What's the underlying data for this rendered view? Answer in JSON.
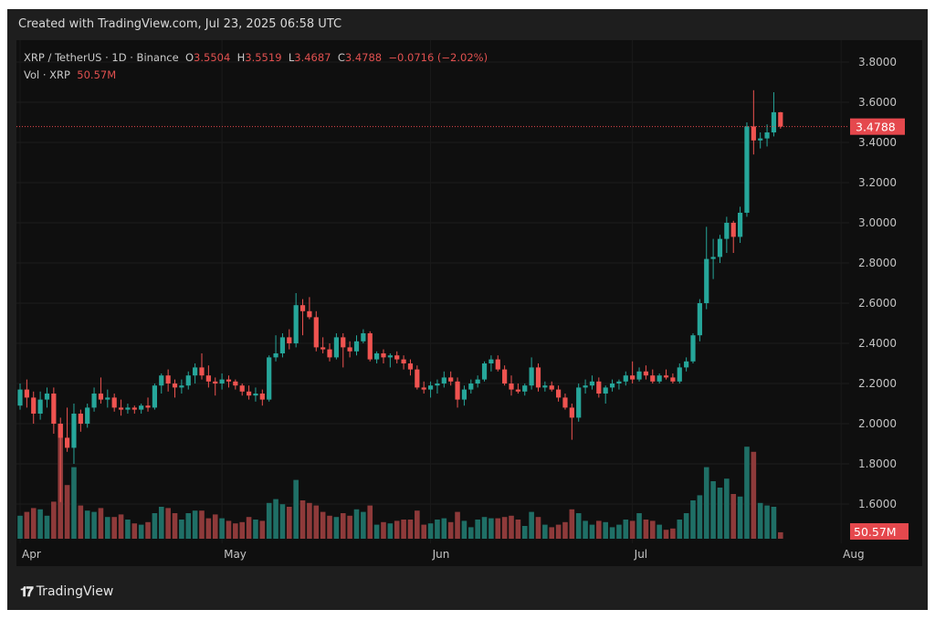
{
  "header": {
    "created": "Created with TradingView.com, Jul 23, 2025 06:58 UTC"
  },
  "legend": {
    "symbol": "XRP / TetherUS · 1D · Binance",
    "o_label": "O",
    "o": "3.5504",
    "h_label": "H",
    "h": "3.5519",
    "l_label": "L",
    "l": "3.4687",
    "c_label": "C",
    "c": "3.4788",
    "change": "−0.0716 (−2.02%)",
    "vol_label": "Vol · XRP",
    "vol": "50.57M"
  },
  "footer": {
    "brand": "TradingView",
    "logo_text": "TV"
  },
  "chart_data": {
    "type": "candlestick",
    "title": "XRP / TetherUS · 1D · Binance",
    "ylim": [
      1.5,
      3.9
    ],
    "y_ticks": [
      "3.8000",
      "3.6000",
      "3.4000",
      "3.2000",
      "3.0000",
      "2.8000",
      "2.6000",
      "2.4000",
      "2.2000",
      "2.0000",
      "1.8000",
      "1.6000"
    ],
    "x_ticks": [
      {
        "label": "Apr",
        "date": "04-01"
      },
      {
        "label": "May",
        "date": "05-01"
      },
      {
        "label": "Jun",
        "date": "06-01"
      },
      {
        "label": "Jul",
        "date": "07-01"
      },
      {
        "label": "Aug",
        "date": "08-01"
      }
    ],
    "last_price": "3.4788",
    "last_volume": "50.57M",
    "grid": true,
    "colors": {
      "up": "#26a69a",
      "down": "#ef5350",
      "vol_up": "#1f6f66",
      "vol_down": "#8e3a3a",
      "price_label": "#e5484d"
    },
    "columns": [
      "date",
      "open",
      "high",
      "low",
      "close",
      "volume_M"
    ],
    "candles": [
      [
        "04-01",
        2.09,
        2.2,
        2.07,
        2.17,
        180
      ],
      [
        "04-02",
        2.17,
        2.22,
        2.08,
        2.13,
        210
      ],
      [
        "04-03",
        2.13,
        2.16,
        2.0,
        2.05,
        240
      ],
      [
        "04-04",
        2.05,
        2.16,
        2.02,
        2.12,
        230
      ],
      [
        "04-05",
        2.12,
        2.18,
        2.08,
        2.15,
        180
      ],
      [
        "04-06",
        2.15,
        2.18,
        1.95,
        2.0,
        290
      ],
      [
        "04-07",
        2.0,
        2.03,
        1.61,
        1.93,
        900
      ],
      [
        "04-08",
        1.93,
        2.08,
        1.86,
        1.88,
        420
      ],
      [
        "04-09",
        1.88,
        2.1,
        1.8,
        2.05,
        560
      ],
      [
        "04-10",
        2.05,
        2.07,
        1.96,
        2.0,
        260
      ],
      [
        "04-11",
        2.0,
        2.1,
        1.98,
        2.08,
        220
      ],
      [
        "04-12",
        2.08,
        2.18,
        2.06,
        2.15,
        210
      ],
      [
        "04-13",
        2.15,
        2.23,
        2.1,
        2.12,
        240
      ],
      [
        "04-14",
        2.12,
        2.17,
        2.08,
        2.13,
        170
      ],
      [
        "04-15",
        2.13,
        2.15,
        2.06,
        2.08,
        170
      ],
      [
        "04-16",
        2.08,
        2.12,
        2.04,
        2.07,
        190
      ],
      [
        "04-17",
        2.07,
        2.1,
        2.05,
        2.08,
        150
      ],
      [
        "04-18",
        2.08,
        2.09,
        2.05,
        2.07,
        120
      ],
      [
        "04-19",
        2.07,
        2.1,
        2.05,
        2.09,
        110
      ],
      [
        "04-20",
        2.09,
        2.13,
        2.06,
        2.08,
        130
      ],
      [
        "04-21",
        2.08,
        2.2,
        2.07,
        2.19,
        200
      ],
      [
        "04-22",
        2.19,
        2.25,
        2.15,
        2.24,
        250
      ],
      [
        "04-23",
        2.24,
        2.27,
        2.16,
        2.2,
        240
      ],
      [
        "04-24",
        2.2,
        2.22,
        2.13,
        2.18,
        200
      ],
      [
        "04-25",
        2.18,
        2.22,
        2.15,
        2.19,
        150
      ],
      [
        "04-26",
        2.19,
        2.26,
        2.17,
        2.24,
        200
      ],
      [
        "04-27",
        2.24,
        2.3,
        2.2,
        2.28,
        220
      ],
      [
        "04-28",
        2.28,
        2.35,
        2.22,
        2.24,
        220
      ],
      [
        "04-29",
        2.24,
        2.29,
        2.18,
        2.21,
        160
      ],
      [
        "04-30",
        2.21,
        2.23,
        2.14,
        2.2,
        190
      ],
      [
        "05-01",
        2.2,
        2.25,
        2.17,
        2.22,
        160
      ],
      [
        "05-02",
        2.22,
        2.24,
        2.18,
        2.21,
        140
      ],
      [
        "05-03",
        2.21,
        2.22,
        2.17,
        2.19,
        120
      ],
      [
        "05-04",
        2.19,
        2.2,
        2.14,
        2.16,
        130
      ],
      [
        "05-05",
        2.16,
        2.19,
        2.12,
        2.14,
        170
      ],
      [
        "05-06",
        2.14,
        2.18,
        2.11,
        2.15,
        150
      ],
      [
        "05-07",
        2.15,
        2.17,
        2.09,
        2.12,
        140
      ],
      [
        "05-08",
        2.12,
        2.34,
        2.11,
        2.33,
        280
      ],
      [
        "05-09",
        2.33,
        2.44,
        2.31,
        2.35,
        310
      ],
      [
        "05-10",
        2.35,
        2.45,
        2.33,
        2.43,
        270
      ],
      [
        "05-11",
        2.43,
        2.47,
        2.37,
        2.4,
        250
      ],
      [
        "05-12",
        2.4,
        2.65,
        2.38,
        2.59,
        460
      ],
      [
        "05-13",
        2.59,
        2.62,
        2.44,
        2.56,
        300
      ],
      [
        "05-14",
        2.56,
        2.63,
        2.52,
        2.53,
        280
      ],
      [
        "05-15",
        2.53,
        2.56,
        2.36,
        2.38,
        260
      ],
      [
        "05-16",
        2.38,
        2.43,
        2.35,
        2.37,
        210
      ],
      [
        "05-17",
        2.37,
        2.4,
        2.31,
        2.33,
        180
      ],
      [
        "05-18",
        2.33,
        2.45,
        2.32,
        2.43,
        170
      ],
      [
        "05-19",
        2.43,
        2.45,
        2.28,
        2.38,
        200
      ],
      [
        "05-20",
        2.38,
        2.41,
        2.33,
        2.36,
        180
      ],
      [
        "05-21",
        2.36,
        2.44,
        2.34,
        2.41,
        230
      ],
      [
        "05-22",
        2.41,
        2.47,
        2.4,
        2.45,
        210
      ],
      [
        "05-23",
        2.45,
        2.46,
        2.31,
        2.32,
        260
      ],
      [
        "05-24",
        2.32,
        2.36,
        2.3,
        2.35,
        110
      ],
      [
        "05-25",
        2.35,
        2.37,
        2.3,
        2.33,
        130
      ],
      [
        "05-26",
        2.33,
        2.35,
        2.28,
        2.34,
        120
      ],
      [
        "05-27",
        2.34,
        2.36,
        2.3,
        2.32,
        140
      ],
      [
        "05-28",
        2.32,
        2.34,
        2.27,
        2.3,
        150
      ],
      [
        "05-29",
        2.3,
        2.32,
        2.24,
        2.27,
        150
      ],
      [
        "05-30",
        2.27,
        2.29,
        2.17,
        2.18,
        220
      ],
      [
        "05-31",
        2.18,
        2.21,
        2.15,
        2.17,
        110
      ],
      [
        "06-01",
        2.17,
        2.21,
        2.13,
        2.19,
        120
      ],
      [
        "06-02",
        2.19,
        2.22,
        2.15,
        2.2,
        150
      ],
      [
        "06-03",
        2.2,
        2.26,
        2.18,
        2.23,
        160
      ],
      [
        "06-04",
        2.23,
        2.26,
        2.19,
        2.21,
        130
      ],
      [
        "06-05",
        2.21,
        2.23,
        2.08,
        2.12,
        210
      ],
      [
        "06-06",
        2.12,
        2.19,
        2.09,
        2.17,
        140
      ],
      [
        "06-07",
        2.17,
        2.22,
        2.15,
        2.2,
        90
      ],
      [
        "06-08",
        2.2,
        2.24,
        2.18,
        2.22,
        150
      ],
      [
        "06-09",
        2.22,
        2.31,
        2.21,
        2.3,
        170
      ],
      [
        "06-10",
        2.3,
        2.34,
        2.26,
        2.32,
        160
      ],
      [
        "06-11",
        2.32,
        2.34,
        2.26,
        2.27,
        160
      ],
      [
        "06-12",
        2.27,
        2.29,
        2.19,
        2.2,
        170
      ],
      [
        "06-13",
        2.2,
        2.24,
        2.14,
        2.17,
        180
      ],
      [
        "06-14",
        2.17,
        2.2,
        2.15,
        2.16,
        150
      ],
      [
        "06-15",
        2.16,
        2.2,
        2.14,
        2.19,
        100
      ],
      [
        "06-16",
        2.19,
        2.33,
        2.17,
        2.28,
        210
      ],
      [
        "06-17",
        2.28,
        2.3,
        2.16,
        2.18,
        170
      ],
      [
        "06-18",
        2.18,
        2.21,
        2.16,
        2.19,
        110
      ],
      [
        "06-19",
        2.19,
        2.21,
        2.16,
        2.17,
        90
      ],
      [
        "06-20",
        2.17,
        2.19,
        2.11,
        2.13,
        110
      ],
      [
        "06-21",
        2.13,
        2.15,
        2.07,
        2.08,
        130
      ],
      [
        "06-22",
        2.08,
        2.1,
        1.92,
        2.03,
        230
      ],
      [
        "06-23",
        2.03,
        2.2,
        2.01,
        2.18,
        200
      ],
      [
        "06-24",
        2.18,
        2.22,
        2.15,
        2.19,
        140
      ],
      [
        "06-25",
        2.19,
        2.24,
        2.17,
        2.21,
        110
      ],
      [
        "06-26",
        2.21,
        2.23,
        2.13,
        2.15,
        140
      ],
      [
        "06-27",
        2.15,
        2.19,
        2.1,
        2.18,
        130
      ],
      [
        "06-28",
        2.18,
        2.22,
        2.16,
        2.2,
        90
      ],
      [
        "06-29",
        2.2,
        2.22,
        2.17,
        2.21,
        110
      ],
      [
        "06-30",
        2.21,
        2.26,
        2.19,
        2.24,
        150
      ],
      [
        "07-01",
        2.24,
        2.31,
        2.2,
        2.22,
        140
      ],
      [
        "07-02",
        2.22,
        2.28,
        2.21,
        2.26,
        200
      ],
      [
        "07-03",
        2.26,
        2.29,
        2.22,
        2.24,
        150
      ],
      [
        "07-04",
        2.24,
        2.27,
        2.2,
        2.21,
        140
      ],
      [
        "07-05",
        2.21,
        2.25,
        2.2,
        2.24,
        110
      ],
      [
        "07-06",
        2.24,
        2.27,
        2.22,
        2.23,
        70
      ],
      [
        "07-07",
        2.23,
        2.25,
        2.2,
        2.21,
        80
      ],
      [
        "07-08",
        2.21,
        2.3,
        2.2,
        2.28,
        150
      ],
      [
        "07-09",
        2.28,
        2.33,
        2.26,
        2.31,
        200
      ],
      [
        "07-10",
        2.31,
        2.45,
        2.3,
        2.44,
        300
      ],
      [
        "07-11",
        2.44,
        2.62,
        2.41,
        2.6,
        340
      ],
      [
        "07-12",
        2.6,
        2.98,
        2.57,
        2.82,
        560
      ],
      [
        "07-13",
        2.82,
        2.92,
        2.72,
        2.83,
        450
      ],
      [
        "07-14",
        2.83,
        2.94,
        2.8,
        2.92,
        400
      ],
      [
        "07-15",
        2.92,
        3.03,
        2.85,
        3.0,
        470
      ],
      [
        "07-16",
        3.0,
        3.01,
        2.85,
        2.93,
        350
      ],
      [
        "07-17",
        2.93,
        3.08,
        2.9,
        3.05,
        330
      ],
      [
        "07-18",
        3.05,
        3.5,
        3.03,
        3.48,
        720
      ],
      [
        "07-19",
        3.48,
        3.66,
        3.34,
        3.41,
        680
      ],
      [
        "07-20",
        3.41,
        3.45,
        3.37,
        3.42,
        280
      ],
      [
        "07-21",
        3.42,
        3.49,
        3.38,
        3.45,
        260
      ],
      [
        "07-22",
        3.45,
        3.65,
        3.43,
        3.5504,
        250
      ],
      [
        "07-23",
        3.5504,
        3.5519,
        3.4687,
        3.4788,
        50.57
      ]
    ]
  }
}
